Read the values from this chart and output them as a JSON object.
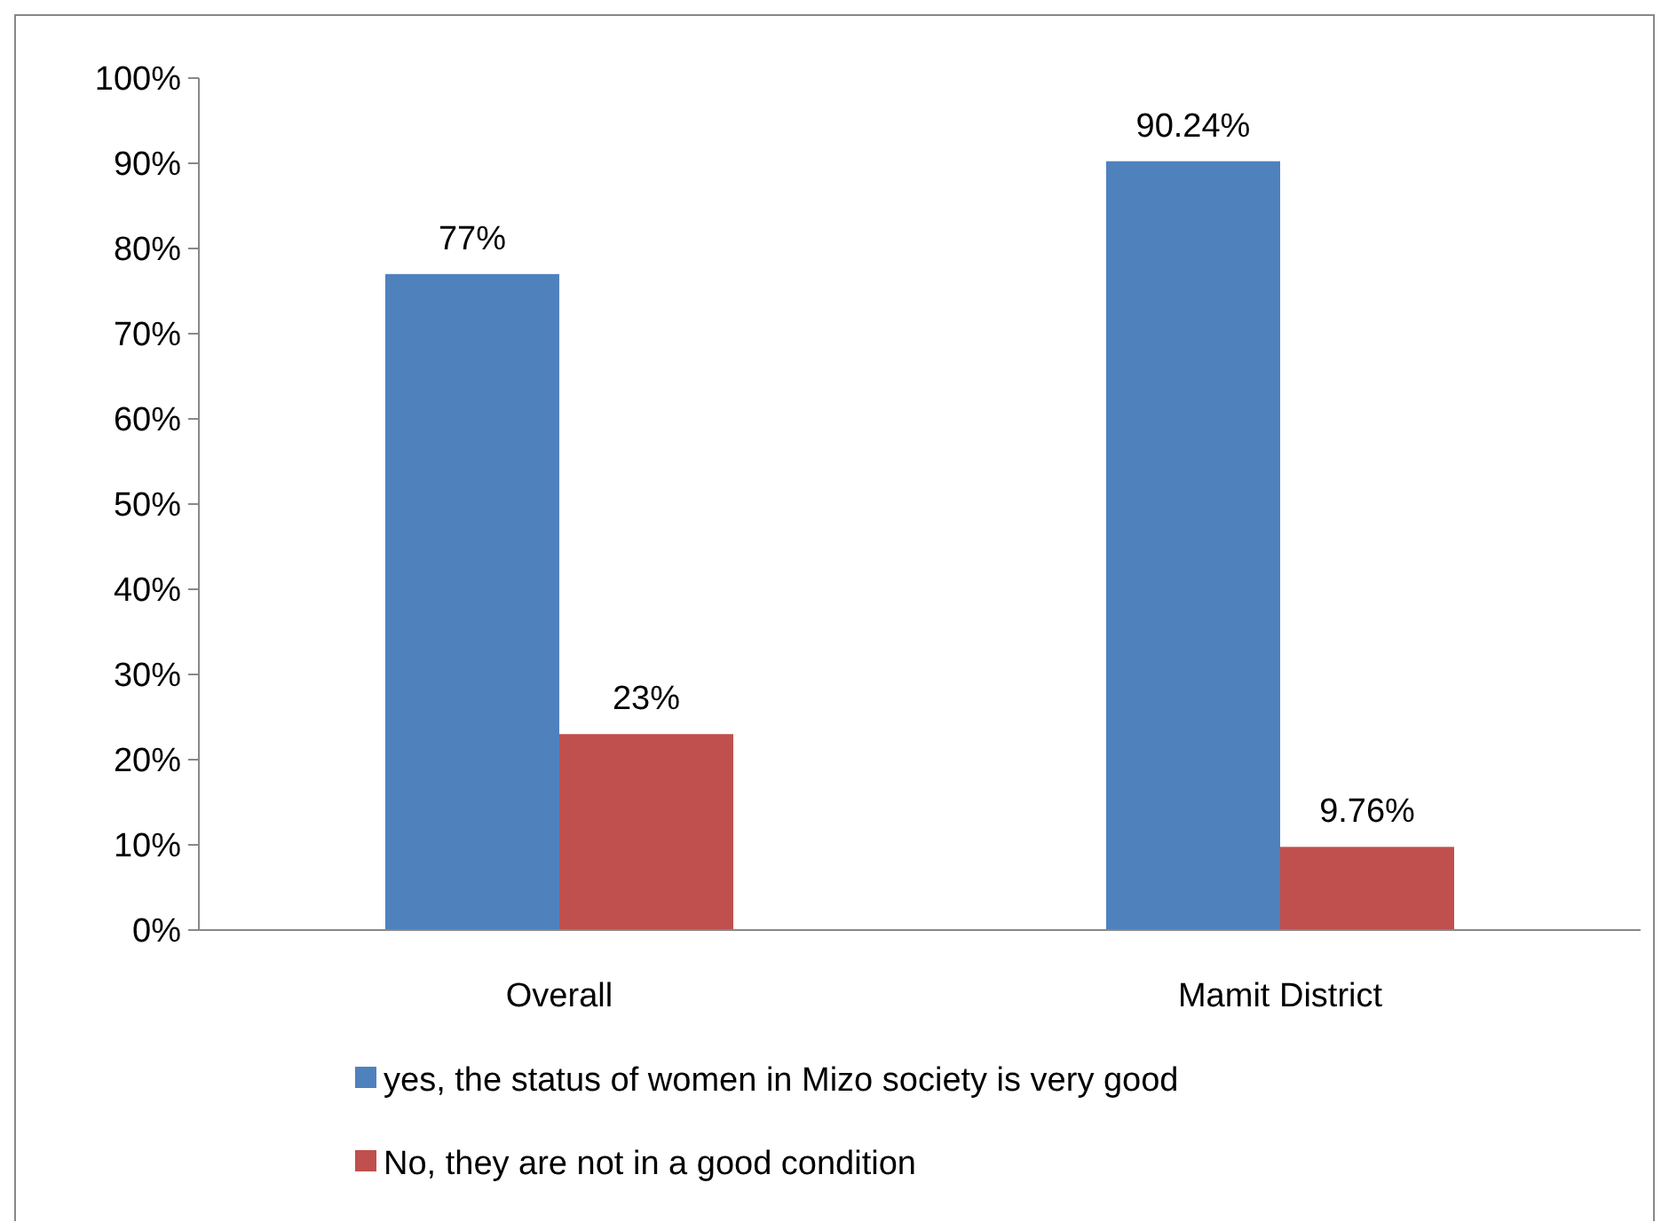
{
  "chart_data": {
    "type": "bar",
    "categories": [
      "Overall",
      "Mamit District"
    ],
    "series": [
      {
        "name": "yes, the status of women in Mizo society is very good",
        "color": "#4f81bd",
        "values": [
          77,
          90.24
        ],
        "value_labels": [
          "77%",
          "90.24%"
        ]
      },
      {
        "name": "No, they are not in a good condition",
        "color": "#c0504d",
        "values": [
          23,
          9.76
        ],
        "value_labels": [
          "23%",
          "9.76%"
        ]
      }
    ],
    "ylim": [
      0,
      100
    ],
    "yticks": [
      {
        "value": 0,
        "label": "0%"
      },
      {
        "value": 10,
        "label": "10%"
      },
      {
        "value": 20,
        "label": "20%"
      },
      {
        "value": 30,
        "label": "30%"
      },
      {
        "value": 40,
        "label": "40%"
      },
      {
        "value": 50,
        "label": "50%"
      },
      {
        "value": 60,
        "label": "60%"
      },
      {
        "value": 70,
        "label": "70%"
      },
      {
        "value": 80,
        "label": "80%"
      },
      {
        "value": 90,
        "label": "90%"
      },
      {
        "value": 100,
        "label": "100%"
      }
    ],
    "grid": false,
    "legend": "bottom"
  }
}
